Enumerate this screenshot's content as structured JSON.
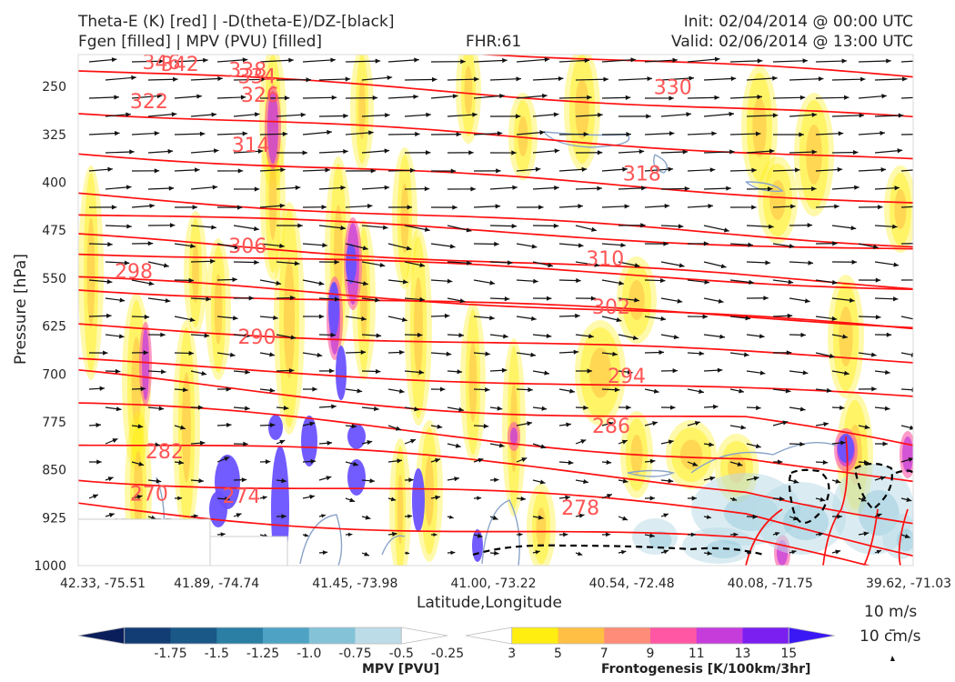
{
  "header": {
    "title_left_1": "Theta-E (K) [red] | -D(theta-E)/DZ-[black]",
    "title_left_2": "Fgen [filled] | MPV (PVU) [filled]",
    "fhr": "FHR:61",
    "init": "Init: 02/04/2014 @ 00:00 UTC",
    "valid": "Valid: 02/06/2014 @ 13:00 UTC"
  },
  "chart_data": {
    "type": "cross-section",
    "xlabel": "Latitude,Longitude",
    "ylabel": "Pressure [hPa]",
    "x_ticks": [
      "42.33, -75.51",
      "41.89, -74.74",
      "41.45, -73.98",
      "41.00, -73.22",
      "40.54, -72.48",
      "40.08, -71.75",
      "39.62, -71.03"
    ],
    "y_ticks": [
      250,
      325,
      400,
      475,
      550,
      625,
      700,
      775,
      850,
      925,
      1000
    ],
    "ylim": [
      1000,
      200
    ],
    "theta_e_contours": [
      270,
      274,
      278,
      282,
      286,
      290,
      294,
      298,
      302,
      306,
      310,
      314,
      318,
      322,
      326,
      330,
      334,
      338,
      342,
      346
    ],
    "theta_e_labels": [
      {
        "text": "270",
        "lat": 42.1,
        "p": 888
      },
      {
        "text": "274",
        "lat": 41.8,
        "p": 892
      },
      {
        "text": "278",
        "lat": 40.7,
        "p": 910
      },
      {
        "text": "282",
        "lat": 42.05,
        "p": 822
      },
      {
        "text": "286",
        "lat": 40.6,
        "p": 782
      },
      {
        "text": "290",
        "lat": 41.75,
        "p": 643
      },
      {
        "text": "294",
        "lat": 40.55,
        "p": 704
      },
      {
        "text": "298",
        "lat": 42.15,
        "p": 540
      },
      {
        "text": "302",
        "lat": 40.6,
        "p": 596
      },
      {
        "text": "306",
        "lat": 41.78,
        "p": 500
      },
      {
        "text": "310",
        "lat": 40.62,
        "p": 520
      },
      {
        "text": "314",
        "lat": 41.77,
        "p": 342
      },
      {
        "text": "318",
        "lat": 40.5,
        "p": 387
      },
      {
        "text": "322",
        "lat": 42.1,
        "p": 274
      },
      {
        "text": "326",
        "lat": 41.74,
        "p": 264
      },
      {
        "text": "330",
        "lat": 40.4,
        "p": 252
      },
      {
        "text": "334",
        "lat": 41.75,
        "p": 235
      },
      {
        "text": "338",
        "lat": 41.78,
        "p": 225
      },
      {
        "text": "342",
        "lat": 42.0,
        "p": 216
      },
      {
        "text": "346",
        "lat": 42.06,
        "p": 213
      }
    ],
    "reference_vector": {
      "u": "10 m/s",
      "w": "10 cm/s"
    }
  },
  "colorbars": {
    "mpv": {
      "title": "MPV [PVU]",
      "ticks": [
        "-1.75",
        "-1.5",
        "-1.25",
        "-1.0",
        "-0.75",
        "-0.5",
        "-0.25"
      ],
      "colors": [
        "#0b1e5c",
        "#123c74",
        "#1a5888",
        "#2b7ea4",
        "#4ea3c4",
        "#84c2d8",
        "#bcdde8",
        "#ffffff"
      ]
    },
    "fgen": {
      "title": "Frontogenesis [K/100km/3hr]",
      "ticks": [
        "3",
        "5",
        "7",
        "9",
        "11",
        "13",
        "15"
      ],
      "colors": [
        "#ffffff",
        "#ffee10",
        "#ffbf45",
        "#ff8c78",
        "#ff57a4",
        "#c53cdb",
        "#7a1ff0",
        "#3a18f5"
      ]
    }
  },
  "colors": {
    "theta_e": "#ff1010",
    "theta_e_label": "#ff5555",
    "mpv_contour": "#8aa4c8",
    "stability": "#000000"
  }
}
